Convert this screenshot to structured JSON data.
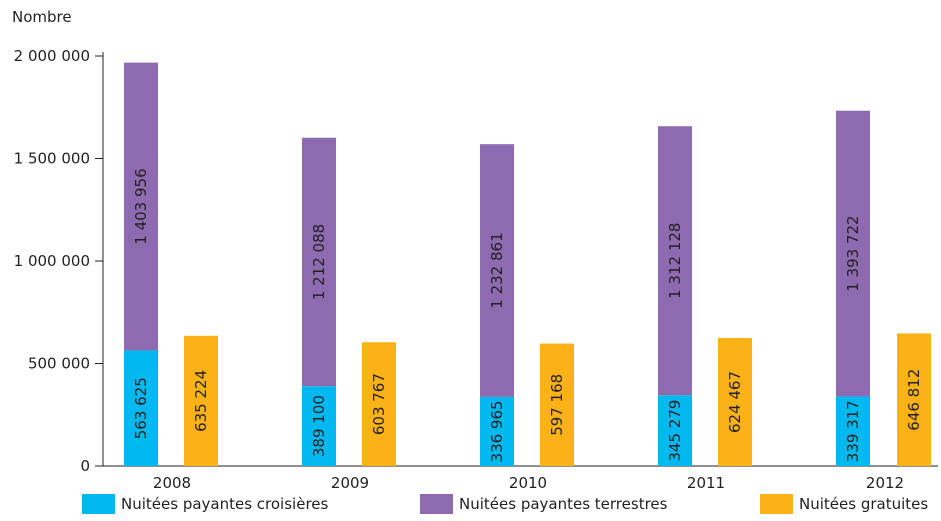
{
  "chart_data": {
    "type": "bar",
    "title": "",
    "ylabel": "Nombre",
    "xlabel": "",
    "ylim": [
      0,
      2000000
    ],
    "yticks": [
      0,
      500000,
      1000000,
      1500000,
      2000000
    ],
    "ytick_labels": [
      "0",
      "500 000",
      "1 000 000",
      "1 500 000",
      "2 000 000"
    ],
    "categories": [
      "2008",
      "2009",
      "2010",
      "2011",
      "2012"
    ],
    "series": [
      {
        "name": "Nuitées payantes croisières",
        "color": "#00b9f1",
        "stack": "payantes",
        "values": [
          563625,
          389100,
          336965,
          345279,
          339317
        ],
        "labels": [
          "563 625",
          "389 100",
          "336 965",
          "345 279",
          "339 317"
        ]
      },
      {
        "name": "Nuitées payantes terrestres",
        "color": "#8e6bb1",
        "stack": "payantes",
        "values": [
          1403956,
          1212088,
          1232861,
          1312128,
          1393722
        ],
        "labels": [
          "1 403 956",
          "1 212 088",
          "1 232 861",
          "1 312 128",
          "1 393 722"
        ]
      },
      {
        "name": "Nuitées gratuites",
        "color": "#fbb216",
        "stack": "gratuites",
        "values": [
          635224,
          603767,
          597168,
          624467,
          646812
        ],
        "labels": [
          "635 224",
          "603 767",
          "597 168",
          "624 467",
          "646 812"
        ]
      }
    ],
    "grid": false,
    "legend_position": "bottom"
  }
}
